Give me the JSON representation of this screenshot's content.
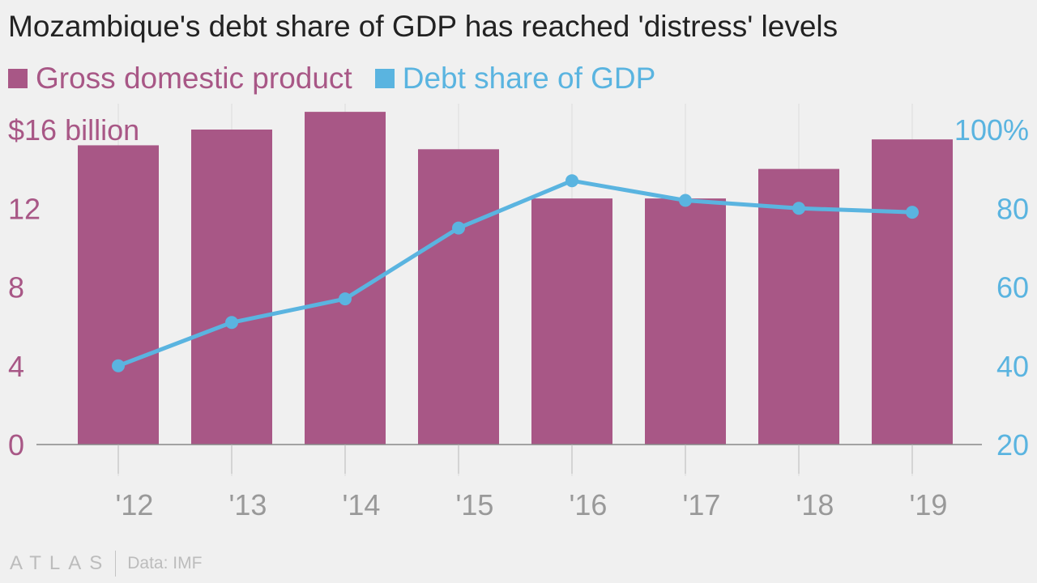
{
  "title": "Mozambique's debt share of GDP has reached 'distress' levels",
  "colors": {
    "gdp": "#a85786",
    "debt": "#5ab4e0",
    "axis": "#888888",
    "grid": "#dcdcdc",
    "tick_x": "#999999"
  },
  "footer": {
    "brand": "ATLAS",
    "source": "Data: IMF"
  },
  "chart_data": {
    "type": "bar",
    "categories": [
      "'12",
      "'13",
      "'14",
      "'15",
      "'16",
      "'17",
      "'18",
      "'19"
    ],
    "series": [
      {
        "name": "Gross domestic product",
        "type": "bar",
        "axis": "left",
        "values": [
          15.2,
          16.0,
          16.9,
          15.0,
          12.5,
          12.5,
          14.0,
          15.5
        ]
      },
      {
        "name": "Debt share of GDP",
        "type": "line",
        "axis": "right",
        "values": [
          40,
          51,
          57,
          75,
          87,
          82,
          80,
          79
        ]
      }
    ],
    "y_left": {
      "ticks": [
        "$16 billion",
        "12",
        "8",
        "4",
        "0"
      ],
      "tick_values": [
        16,
        12,
        8,
        4,
        0
      ],
      "range": [
        0,
        16
      ]
    },
    "y_right": {
      "ticks": [
        "100%",
        "80",
        "60",
        "40",
        "20"
      ],
      "tick_values": [
        100,
        80,
        60,
        40,
        20
      ],
      "range": [
        20,
        100
      ]
    },
    "grid": true,
    "legend_position": "top-left"
  }
}
